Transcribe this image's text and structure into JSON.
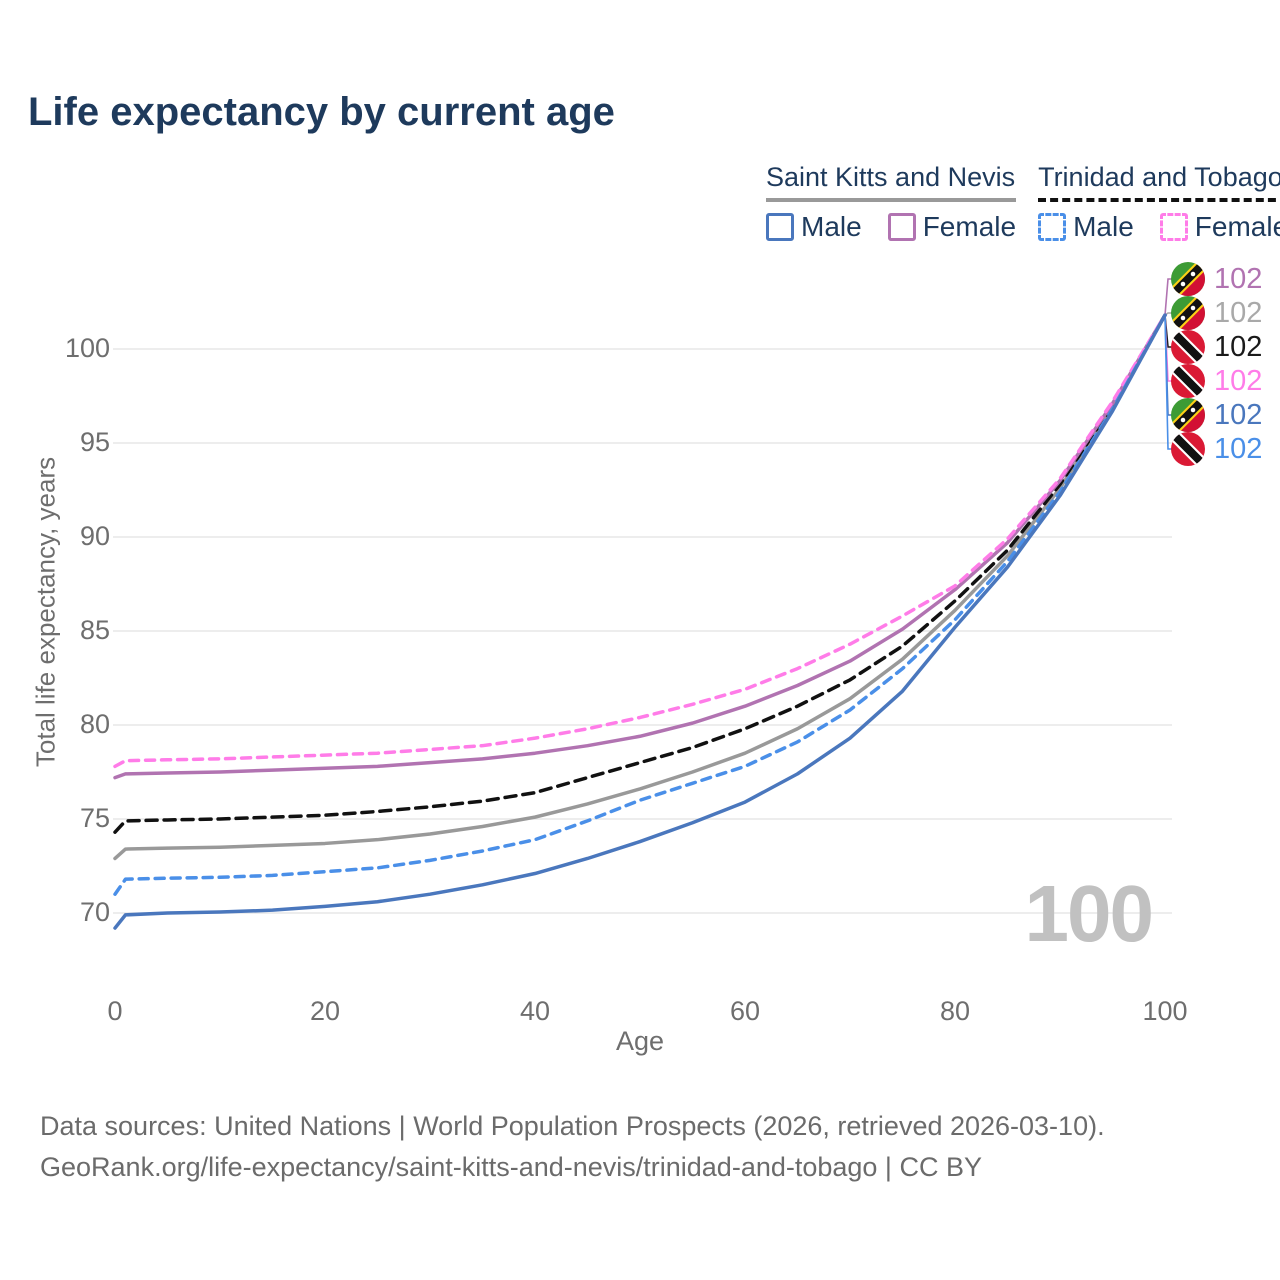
{
  "title": "Life expectancy by current age",
  "legend": {
    "groups": [
      {
        "label": "Saint Kitts and Nevis",
        "line_style": "solid",
        "underline_color": "#999999",
        "items": [
          {
            "label": "Male",
            "color": "#4a77bd"
          },
          {
            "label": "Female",
            "color": "#b173b1"
          }
        ]
      },
      {
        "label": "Trinidad and Tobago",
        "line_style": "dashed",
        "underline_color": "#111111",
        "items": [
          {
            "label": "Male",
            "color": "#4a8fe8"
          },
          {
            "label": "Female",
            "color": "#ff7ce8"
          }
        ]
      }
    ]
  },
  "watermark_age": "100",
  "end_labels": [
    {
      "series": "Saint Kitts and Nevis — Female",
      "value": "102",
      "color": "#b173b1",
      "flag": "kn"
    },
    {
      "series": "Saint Kitts and Nevis — Both sexes",
      "value": "102",
      "color": "#a9a9a9",
      "flag": "kn"
    },
    {
      "series": "Trinidad and Tobago — Both sexes",
      "value": "102",
      "color": "#1a1a1a",
      "flag": "tt"
    },
    {
      "series": "Trinidad and Tobago — Female",
      "value": "102",
      "color": "#ff7ce8",
      "flag": "tt"
    },
    {
      "series": "Saint Kitts and Nevis — Male",
      "value": "102",
      "color": "#4a77bd",
      "flag": "kn"
    },
    {
      "series": "Trinidad and Tobago — Male",
      "value": "102",
      "color": "#4a8fe8",
      "flag": "tt"
    }
  ],
  "footer": {
    "line1": "Data sources: United Nations | World Population Prospects (2026, retrieved 2026-03-10).",
    "line2": "GeoRank.org/life-expectancy/saint-kitts-and-nevis/trinidad-and-tobago | CC BY"
  },
  "chart_data": {
    "type": "line",
    "title": "Life expectancy by current age",
    "xlabel": "Age",
    "ylabel": "Total life expectancy, years",
    "x_ticks": [
      0,
      20,
      40,
      60,
      80,
      100
    ],
    "y_ticks": [
      70,
      75,
      80,
      85,
      90,
      95,
      100
    ],
    "xlim": [
      0,
      100
    ],
    "ylim": [
      68,
      103
    ],
    "grid": "horizontal",
    "legend_position": "top-right",
    "x": [
      0,
      1,
      5,
      10,
      15,
      20,
      25,
      30,
      35,
      40,
      45,
      50,
      55,
      60,
      65,
      70,
      75,
      80,
      85,
      90,
      95,
      100
    ],
    "series": [
      {
        "name": "Saint Kitts and Nevis — Both sexes",
        "color": "#999999",
        "dash": false,
        "values": [
          72.9,
          73.4,
          73.45,
          73.5,
          73.6,
          73.7,
          73.9,
          74.2,
          74.6,
          75.1,
          75.8,
          76.6,
          77.5,
          78.5,
          79.8,
          81.4,
          83.5,
          86.1,
          89.0,
          92.6,
          96.9,
          101.8
        ]
      },
      {
        "name": "Trinidad and Tobago — Both sexes",
        "color": "#111111",
        "dash": true,
        "values": [
          74.3,
          74.9,
          74.95,
          75.0,
          75.1,
          75.2,
          75.4,
          75.65,
          75.95,
          76.4,
          77.2,
          78.0,
          78.8,
          79.8,
          81.0,
          82.4,
          84.2,
          86.6,
          89.3,
          92.8,
          97.0,
          101.8
        ]
      },
      {
        "name": "Saint Kitts and Nevis — Female",
        "color": "#b173b1",
        "dash": false,
        "values": [
          77.2,
          77.4,
          77.45,
          77.5,
          77.6,
          77.7,
          77.8,
          78.0,
          78.2,
          78.5,
          78.9,
          79.4,
          80.1,
          81.0,
          82.1,
          83.4,
          85.1,
          87.2,
          89.7,
          93.0,
          97.1,
          101.8
        ]
      },
      {
        "name": "Trinidad and Tobago — Female",
        "color": "#ff7ce8",
        "dash": true,
        "values": [
          77.8,
          78.1,
          78.15,
          78.2,
          78.3,
          78.4,
          78.5,
          78.7,
          78.9,
          79.3,
          79.8,
          80.4,
          81.1,
          81.9,
          83.0,
          84.3,
          85.8,
          87.4,
          89.9,
          93.1,
          97.2,
          101.8
        ]
      },
      {
        "name": "Trinidad and Tobago — Male",
        "color": "#4a8fe8",
        "dash": true,
        "values": [
          71.0,
          71.8,
          71.85,
          71.9,
          72.0,
          72.2,
          72.4,
          72.8,
          73.3,
          73.9,
          74.9,
          76.0,
          76.9,
          77.8,
          79.1,
          80.8,
          83.0,
          85.6,
          88.7,
          92.4,
          96.8,
          101.8
        ]
      },
      {
        "name": "Saint Kitts and Nevis — Male",
        "color": "#4a77bd",
        "dash": false,
        "values": [
          69.2,
          69.9,
          70.0,
          70.05,
          70.15,
          70.35,
          70.6,
          71.0,
          71.5,
          72.1,
          72.9,
          73.8,
          74.8,
          75.9,
          77.4,
          79.3,
          81.8,
          85.2,
          88.4,
          92.2,
          96.7,
          101.8
        ]
      }
    ]
  }
}
